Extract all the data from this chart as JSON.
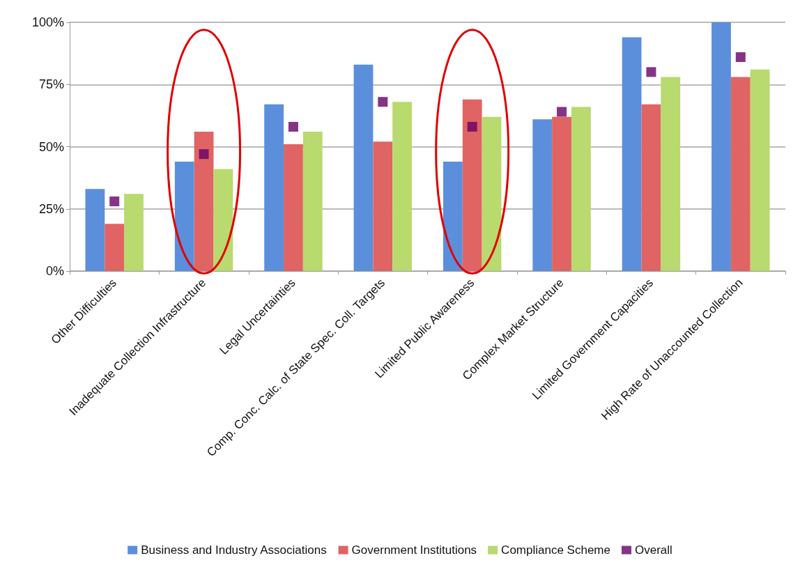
{
  "chart_data": {
    "type": "bar",
    "categories": [
      "Other Difficulties",
      "Inadequate Collection Infrastructure",
      "Legal Uncertainties",
      "Comp. Conc. Calc. of State Spec. Coll. Targets",
      "Limited Public Awareness",
      "Complex Market Structure",
      "Limited Government Capacities",
      "High Rate of Unaccounted Collection"
    ],
    "series": [
      {
        "name": "Business and Industry Associations",
        "color": "#5b8fdc",
        "values": [
          33,
          44,
          67,
          83,
          44,
          61,
          94,
          100
        ]
      },
      {
        "name": "Government Institutions",
        "color": "#e06464",
        "values": [
          19,
          56,
          51,
          52,
          69,
          62,
          67,
          78
        ]
      },
      {
        "name": "Compliance Scheme",
        "color": "#b8da6e",
        "values": [
          31,
          41,
          56,
          68,
          62,
          66,
          78,
          81
        ]
      },
      {
        "name": "Overall",
        "type": "scatter",
        "color": "#660066",
        "values": [
          28,
          47,
          58,
          68,
          58,
          64,
          80,
          86
        ]
      }
    ],
    "ylim": [
      0,
      100
    ],
    "yticks": [
      {
        "value": 0,
        "label": "0%"
      },
      {
        "value": 25,
        "label": "25%"
      },
      {
        "value": 50,
        "label": "50%"
      },
      {
        "value": 75,
        "label": "75%"
      },
      {
        "value": 100,
        "label": "100%"
      }
    ],
    "grid": "y",
    "legend": "bottom",
    "marker": "square"
  }
}
